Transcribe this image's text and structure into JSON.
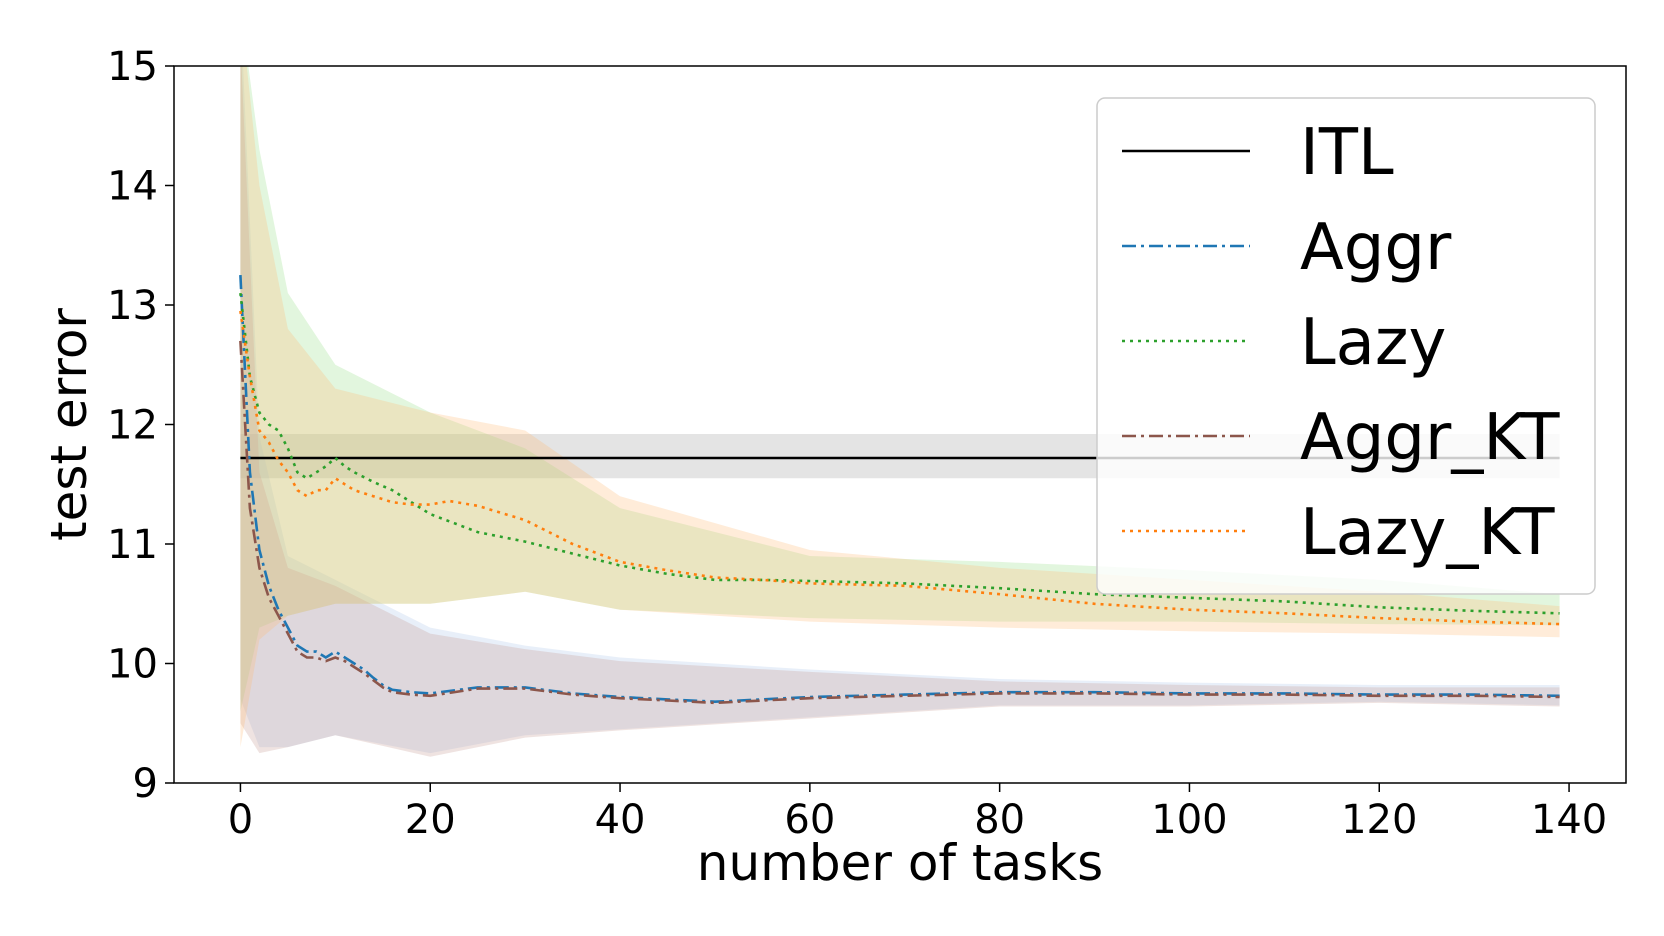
{
  "chart_data": {
    "type": "line",
    "xlabel": "number of tasks",
    "ylabel": "test error",
    "xlim": [
      -7,
      146
    ],
    "ylim": [
      9,
      15
    ],
    "xticks": [
      0,
      20,
      40,
      60,
      80,
      100,
      120,
      140
    ],
    "yticks": [
      9,
      10,
      11,
      12,
      13,
      14,
      15
    ],
    "x_tick_labels": [
      "0",
      "20",
      "40",
      "60",
      "80",
      "100",
      "120",
      "140"
    ],
    "y_tick_labels": [
      "9",
      "10",
      "11",
      "12",
      "13",
      "14",
      "15"
    ],
    "legend_position": "top-right",
    "grid": false,
    "series": [
      {
        "name": "ITL",
        "color": "#000000",
        "style": "solid",
        "x": [
          0,
          139
        ],
        "y": [
          11.72,
          11.72
        ],
        "band_x": [
          0,
          139
        ],
        "band_lower": [
          11.55,
          11.55
        ],
        "band_upper": [
          11.92,
          11.92
        ],
        "band_color": "#9e9e9e"
      },
      {
        "name": "Aggr",
        "color": "#1f77b4",
        "style": "dashdot",
        "x": [
          0,
          1,
          2,
          3,
          4,
          5,
          6,
          7,
          8,
          9,
          10,
          11,
          12,
          13,
          14,
          15,
          16,
          18,
          20,
          25,
          30,
          35,
          40,
          45,
          50,
          55,
          60,
          70,
          80,
          90,
          100,
          110,
          120,
          130,
          139
        ],
        "y": [
          13.25,
          11.6,
          10.95,
          10.65,
          10.45,
          10.3,
          10.15,
          10.1,
          10.1,
          10.05,
          10.1,
          10.05,
          10.0,
          9.95,
          9.88,
          9.82,
          9.78,
          9.76,
          9.75,
          9.8,
          9.8,
          9.75,
          9.72,
          9.7,
          9.68,
          9.7,
          9.72,
          9.74,
          9.76,
          9.76,
          9.75,
          9.75,
          9.74,
          9.74,
          9.73
        ],
        "band_x": [
          0,
          2,
          5,
          10,
          20,
          30,
          40,
          60,
          80,
          100,
          120,
          139
        ],
        "band_lower": [
          9.7,
          9.3,
          9.3,
          9.4,
          9.25,
          9.4,
          9.45,
          9.55,
          9.65,
          9.65,
          9.68,
          9.65
        ],
        "band_upper": [
          15.5,
          11.9,
          10.9,
          10.7,
          10.3,
          10.15,
          10.05,
          9.95,
          9.87,
          9.84,
          9.82,
          9.82
        ],
        "band_color": "#aec7e8"
      },
      {
        "name": "Lazy",
        "color": "#2ca02c",
        "style": "dotted",
        "x": [
          0,
          1,
          2,
          3,
          4,
          5,
          6,
          7,
          8,
          9,
          10,
          11,
          12,
          14,
          16,
          18,
          20,
          25,
          30,
          35,
          40,
          45,
          50,
          55,
          60,
          70,
          80,
          90,
          100,
          110,
          120,
          130,
          139
        ],
        "y": [
          13.1,
          12.4,
          12.1,
          12.0,
          11.95,
          11.8,
          11.6,
          11.55,
          11.6,
          11.65,
          11.72,
          11.65,
          11.6,
          11.52,
          11.45,
          11.35,
          11.25,
          11.1,
          11.02,
          10.92,
          10.82,
          10.75,
          10.7,
          10.7,
          10.69,
          10.67,
          10.63,
          10.58,
          10.55,
          10.52,
          10.47,
          10.44,
          10.42
        ],
        "band_x": [
          0,
          2,
          5,
          10,
          20,
          30,
          40,
          60,
          80,
          100,
          120,
          139
        ],
        "band_lower": [
          9.6,
          10.3,
          10.4,
          10.5,
          10.5,
          10.6,
          10.45,
          10.38,
          10.35,
          10.35,
          10.33,
          10.32
        ],
        "band_upper": [
          15.5,
          14.3,
          13.1,
          12.5,
          12.1,
          11.8,
          11.3,
          10.9,
          10.85,
          10.78,
          10.7,
          10.58
        ],
        "band_color": "#98df8a"
      },
      {
        "name": "Aggr_KT",
        "color": "#8c564b",
        "style": "dashdot",
        "x": [
          0,
          1,
          2,
          3,
          4,
          5,
          6,
          7,
          8,
          9,
          10,
          11,
          12,
          13,
          14,
          15,
          16,
          18,
          20,
          25,
          30,
          35,
          40,
          45,
          50,
          55,
          60,
          70,
          80,
          90,
          100,
          110,
          120,
          130,
          139
        ],
        "y": [
          12.7,
          11.3,
          10.8,
          10.55,
          10.4,
          10.25,
          10.1,
          10.05,
          10.05,
          10.02,
          10.05,
          10.02,
          9.97,
          9.92,
          9.86,
          9.8,
          9.76,
          9.74,
          9.73,
          9.79,
          9.79,
          9.74,
          9.71,
          9.69,
          9.67,
          9.69,
          9.71,
          9.73,
          9.75,
          9.75,
          9.74,
          9.74,
          9.73,
          9.73,
          9.72
        ],
        "band_x": [
          0,
          2,
          5,
          10,
          20,
          30,
          40,
          60,
          80,
          100,
          120,
          139
        ],
        "band_lower": [
          9.5,
          9.25,
          9.3,
          9.4,
          9.22,
          9.38,
          9.44,
          9.54,
          9.64,
          9.64,
          9.67,
          9.64
        ],
        "band_upper": [
          15.2,
          11.6,
          10.8,
          10.65,
          10.25,
          10.12,
          10.02,
          9.93,
          9.85,
          9.82,
          9.8,
          9.8
        ],
        "band_color": "#c49c94"
      },
      {
        "name": "Lazy_KT",
        "color": "#ff7f0e",
        "style": "dotted",
        "x": [
          0,
          1,
          2,
          3,
          4,
          5,
          6,
          7,
          8,
          9,
          10,
          11,
          12,
          14,
          16,
          18,
          20,
          22,
          25,
          30,
          35,
          40,
          45,
          50,
          55,
          60,
          70,
          80,
          90,
          100,
          110,
          120,
          130,
          139
        ],
        "y": [
          12.95,
          12.4,
          11.95,
          11.85,
          11.7,
          11.6,
          11.45,
          11.4,
          11.45,
          11.45,
          11.55,
          11.5,
          11.45,
          11.4,
          11.35,
          11.33,
          11.33,
          11.36,
          11.32,
          11.2,
          11.0,
          10.85,
          10.78,
          10.72,
          10.7,
          10.67,
          10.65,
          10.58,
          10.5,
          10.45,
          10.42,
          10.38,
          10.35,
          10.33
        ],
        "band_x": [
          0,
          2,
          5,
          10,
          20,
          30,
          40,
          60,
          80,
          100,
          120,
          139
        ],
        "band_lower": [
          9.3,
          10.2,
          10.4,
          10.5,
          10.5,
          10.6,
          10.45,
          10.35,
          10.3,
          10.27,
          10.25,
          10.22
        ],
        "band_upper": [
          15.5,
          14.0,
          12.8,
          12.3,
          12.1,
          11.95,
          11.4,
          10.95,
          10.8,
          10.7,
          10.6,
          10.48
        ],
        "band_color": "#ffbb78"
      }
    ]
  }
}
